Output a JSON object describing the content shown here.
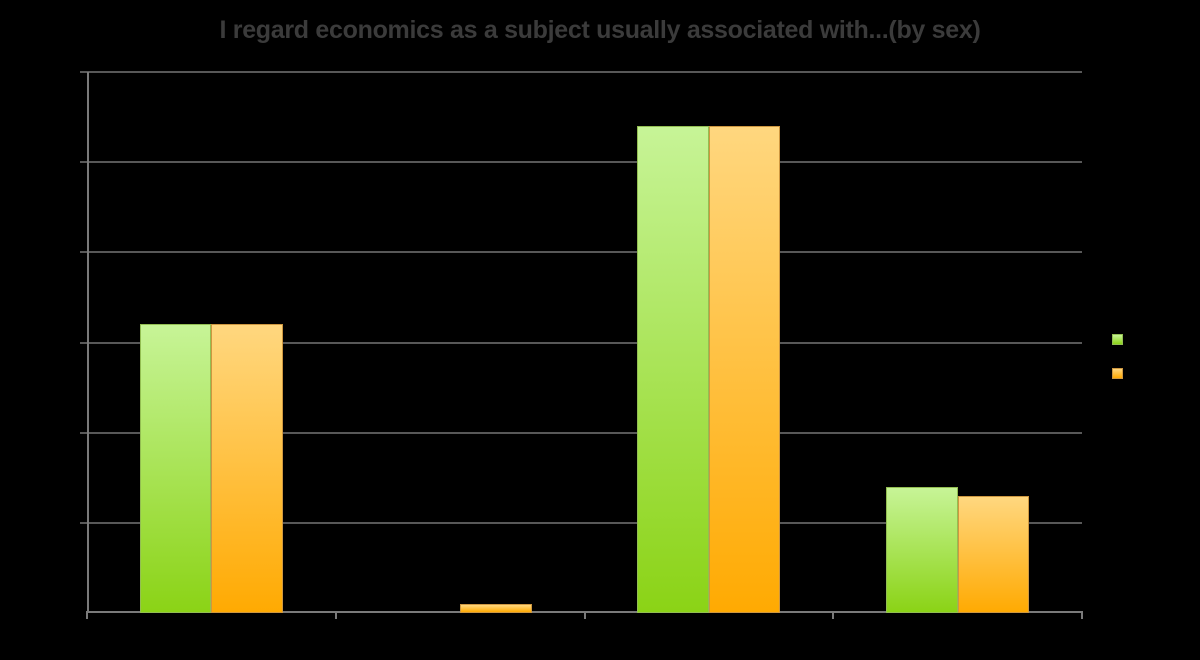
{
  "page": {
    "background_color": "#000000"
  },
  "chart_data": {
    "type": "bar",
    "title": "I regard economics as a subject usually associated with...(by sex)",
    "title_color": "#3B3B3B",
    "categories": [
      "",
      "",
      "",
      ""
    ],
    "series": [
      {
        "name": "green-series",
        "values": [
          32,
          0,
          54,
          14
        ],
        "color_top": "#C7F497",
        "color_bottom": "#8BD316",
        "border_color": "#93BE52"
      },
      {
        "name": "orange-series",
        "values": [
          32,
          1,
          54,
          13
        ],
        "color_top": "#FFD77F",
        "color_bottom": "#FFAA02",
        "border_color": "#CE9740"
      }
    ],
    "ylim": [
      0,
      60
    ],
    "gridline_step": 10,
    "grid": true,
    "gridline_color": "#585858",
    "axis_color": "#7A7A7A",
    "legend_position": "right",
    "legend_labels_visible": false,
    "axis_tick_labels_visible": false
  }
}
